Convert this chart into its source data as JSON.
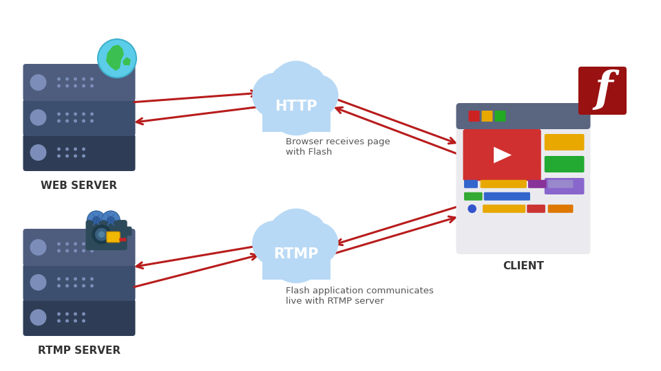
{
  "bg_color": "#ffffff",
  "server_mid_top": "#4e5d7e",
  "server_mid_bot": "#3d4f6e",
  "server_dark": "#2e3d55",
  "server_circle": "#7b8db8",
  "server_dot": "#7b8db8",
  "cloud_fill": "#b8d9f5",
  "cloud_edge": "#90c0e8",
  "arrow_color": "#b81c1c",
  "text_color": "#555555",
  "label_color": "#333333",
  "web_server_label": "WEB SERVER",
  "rtmp_server_label": "RTMP SERVER",
  "client_label": "CLIENT",
  "http_label": "HTTP",
  "rtmp_label": "RTMP",
  "http_desc": "Browser receives page\nwith Flash",
  "rtmp_desc": "Flash application communicates\nlive with RTMP server",
  "toolbar_color": "#5a6580",
  "window_bg": "#eeeef2",
  "vid_red": "#d03030",
  "flash_red": "#991111"
}
